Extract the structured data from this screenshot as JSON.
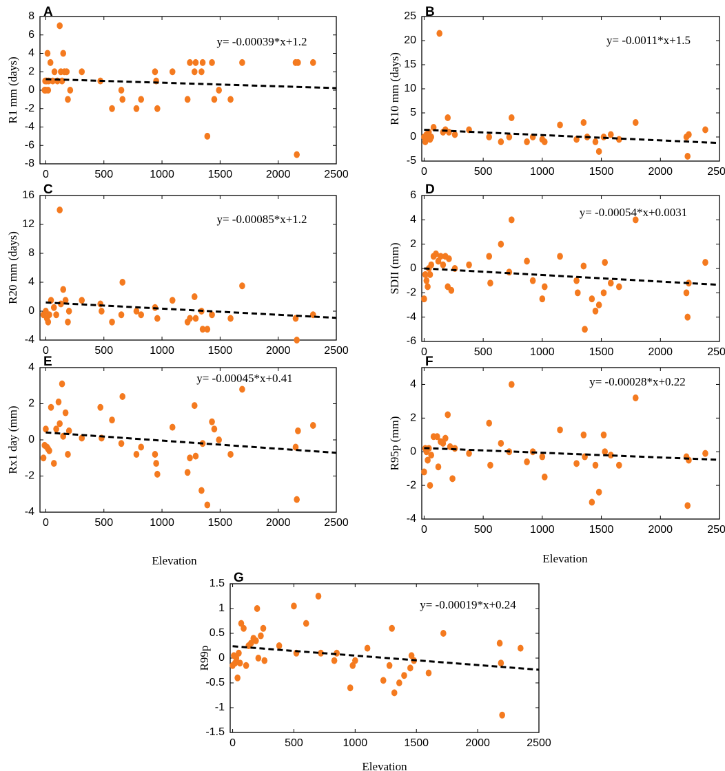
{
  "colors": {
    "point": "#F47A1F",
    "trend": "#000000",
    "axis": "#000000"
  },
  "chart_data": [
    {
      "panel": "A",
      "type": "scatter",
      "ylabel": "R1 mm (days)",
      "xlabel": "",
      "equation": "y= -0.00039*x+1.2",
      "slope": -0.00039,
      "intercept": 1.2,
      "xlim": [
        -50,
        2500
      ],
      "ylim": [
        -8,
        8
      ],
      "xticks": [
        0,
        500,
        1000,
        1500,
        2000,
        2500
      ],
      "yticks": [
        -8,
        -6,
        -4,
        -2,
        0,
        2,
        4,
        6,
        8
      ],
      "points": [
        [
          -10,
          0
        ],
        [
          -5,
          1
        ],
        [
          0,
          0
        ],
        [
          8,
          1
        ],
        [
          15,
          4
        ],
        [
          20,
          0
        ],
        [
          25,
          1
        ],
        [
          40,
          3
        ],
        [
          60,
          1
        ],
        [
          75,
          2
        ],
        [
          100,
          1
        ],
        [
          120,
          7
        ],
        [
          130,
          2
        ],
        [
          140,
          1
        ],
        [
          150,
          4
        ],
        [
          160,
          2
        ],
        [
          180,
          2
        ],
        [
          190,
          -1
        ],
        [
          210,
          0
        ],
        [
          310,
          2
        ],
        [
          470,
          1
        ],
        [
          570,
          -2
        ],
        [
          650,
          0
        ],
        [
          660,
          -1
        ],
        [
          780,
          -2
        ],
        [
          820,
          -1
        ],
        [
          940,
          2
        ],
        [
          950,
          1
        ],
        [
          960,
          -2
        ],
        [
          1090,
          2
        ],
        [
          1220,
          -1
        ],
        [
          1240,
          3
        ],
        [
          1280,
          2
        ],
        [
          1290,
          3
        ],
        [
          1340,
          2
        ],
        [
          1350,
          3
        ],
        [
          1390,
          -5
        ],
        [
          1430,
          3
        ],
        [
          1450,
          -1
        ],
        [
          1490,
          0
        ],
        [
          1590,
          -1
        ],
        [
          1690,
          3
        ],
        [
          2150,
          3
        ],
        [
          2160,
          -7
        ],
        [
          2170,
          3
        ],
        [
          2300,
          3
        ]
      ]
    },
    {
      "panel": "B",
      "type": "scatter",
      "ylabel": "R10 mm (days)",
      "xlabel": "",
      "equation": "y= -0.0011*x+1.5",
      "slope": -0.0011,
      "intercept": 1.5,
      "xlim": [
        -20,
        2500
      ],
      "ylim": [
        -5,
        25
      ],
      "xticks": [
        0,
        500,
        1000,
        1500,
        2000,
        2500
      ],
      "yticks": [
        -5,
        0,
        5,
        10,
        15,
        20,
        25
      ],
      "points": [
        [
          0,
          0
        ],
        [
          10,
          -1
        ],
        [
          20,
          0.5
        ],
        [
          30,
          0
        ],
        [
          40,
          1
        ],
        [
          50,
          -0.5
        ],
        [
          60,
          0
        ],
        [
          80,
          2
        ],
        [
          130,
          21.5
        ],
        [
          160,
          1
        ],
        [
          180,
          1.5
        ],
        [
          200,
          4
        ],
        [
          210,
          1
        ],
        [
          260,
          0.5
        ],
        [
          380,
          1.5
        ],
        [
          550,
          0
        ],
        [
          650,
          -1
        ],
        [
          720,
          0
        ],
        [
          740,
          4
        ],
        [
          870,
          -1
        ],
        [
          920,
          0
        ],
        [
          1000,
          -0.5
        ],
        [
          1020,
          -1
        ],
        [
          1150,
          2.5
        ],
        [
          1290,
          -0.5
        ],
        [
          1350,
          3
        ],
        [
          1380,
          0
        ],
        [
          1450,
          -1
        ],
        [
          1480,
          -3
        ],
        [
          1520,
          0
        ],
        [
          1580,
          0.5
        ],
        [
          1650,
          -0.5
        ],
        [
          1790,
          3
        ],
        [
          2220,
          0
        ],
        [
          2230,
          -4
        ],
        [
          2240,
          0.5
        ],
        [
          2380,
          1.5
        ]
      ]
    },
    {
      "panel": "C",
      "type": "scatter",
      "ylabel": "R20 mm (days)",
      "xlabel": "",
      "equation": "y= -0.00085*x+1.2",
      "slope": -0.00085,
      "intercept": 1.2,
      "xlim": [
        -50,
        2500
      ],
      "ylim": [
        -4,
        16
      ],
      "xticks": [
        0,
        500,
        1000,
        1500,
        2000,
        2500
      ],
      "yticks": [
        -4,
        0,
        4,
        8,
        12,
        16
      ],
      "points": [
        [
          -20,
          -0.5
        ],
        [
          0,
          0
        ],
        [
          10,
          -1
        ],
        [
          20,
          -1.5
        ],
        [
          30,
          -0.5
        ],
        [
          45,
          1.5
        ],
        [
          70,
          0.5
        ],
        [
          90,
          -0.5
        ],
        [
          120,
          14
        ],
        [
          130,
          1
        ],
        [
          150,
          3
        ],
        [
          170,
          1.5
        ],
        [
          190,
          -1.5
        ],
        [
          200,
          0
        ],
        [
          310,
          1.5
        ],
        [
          470,
          1
        ],
        [
          480,
          0
        ],
        [
          570,
          -1.5
        ],
        [
          650,
          -0.5
        ],
        [
          660,
          4
        ],
        [
          780,
          0
        ],
        [
          820,
          -0.5
        ],
        [
          940,
          0.5
        ],
        [
          960,
          -1
        ],
        [
          1090,
          1.5
        ],
        [
          1220,
          -1.5
        ],
        [
          1240,
          -1
        ],
        [
          1280,
          2
        ],
        [
          1290,
          -1
        ],
        [
          1340,
          0
        ],
        [
          1350,
          -2.5
        ],
        [
          1390,
          -2.5
        ],
        [
          1430,
          -0.5
        ],
        [
          1590,
          -1
        ],
        [
          1690,
          3.5
        ],
        [
          2150,
          -1
        ],
        [
          2160,
          -4
        ],
        [
          2300,
          -0.5
        ]
      ]
    },
    {
      "panel": "D",
      "type": "scatter",
      "ylabel": "SDII (mm)",
      "xlabel": "",
      "equation": "y= -0.00054*x+0.0031",
      "slope": -0.00054,
      "intercept": 0.0031,
      "xlim": [
        -20,
        2500
      ],
      "ylim": [
        -6,
        6
      ],
      "xticks": [
        0,
        500,
        1000,
        1500,
        2000,
        2500
      ],
      "yticks": [
        -6,
        -4,
        -2,
        0,
        2,
        4,
        6
      ],
      "points": [
        [
          0,
          -2.5
        ],
        [
          10,
          -0.5
        ],
        [
          20,
          -1
        ],
        [
          30,
          -1.5
        ],
        [
          40,
          0
        ],
        [
          50,
          -0.5
        ],
        [
          60,
          0.3
        ],
        [
          80,
          1
        ],
        [
          100,
          1.2
        ],
        [
          120,
          0.6
        ],
        [
          140,
          1
        ],
        [
          160,
          0.3
        ],
        [
          180,
          1
        ],
        [
          200,
          -1.5
        ],
        [
          210,
          0.8
        ],
        [
          230,
          -1.8
        ],
        [
          260,
          0
        ],
        [
          380,
          0.3
        ],
        [
          550,
          1
        ],
        [
          560,
          -1.2
        ],
        [
          650,
          2
        ],
        [
          720,
          -0.3
        ],
        [
          740,
          4
        ],
        [
          870,
          0.6
        ],
        [
          920,
          -1
        ],
        [
          1000,
          -2.5
        ],
        [
          1020,
          -1.5
        ],
        [
          1150,
          1
        ],
        [
          1290,
          -1
        ],
        [
          1300,
          -2
        ],
        [
          1350,
          0.2
        ],
        [
          1360,
          -5
        ],
        [
          1420,
          -2.5
        ],
        [
          1450,
          -3.5
        ],
        [
          1480,
          -3
        ],
        [
          1520,
          -2
        ],
        [
          1530,
          0.5
        ],
        [
          1580,
          -1.2
        ],
        [
          1650,
          -1.5
        ],
        [
          1790,
          4
        ],
        [
          2220,
          -2
        ],
        [
          2230,
          -4
        ],
        [
          2240,
          -1.2
        ],
        [
          2380,
          0.5
        ]
      ]
    },
    {
      "panel": "E",
      "type": "scatter",
      "ylabel": "Rx1 day (mm)",
      "xlabel": "Elevation",
      "equation": "y= -0.00045*x+0.41",
      "slope": -0.00045,
      "intercept": 0.41,
      "xlim": [
        -50,
        2500
      ],
      "ylim": [
        -4,
        4
      ],
      "xticks": [
        0,
        500,
        1000,
        1500,
        2000,
        2500
      ],
      "yticks": [
        -4,
        -2,
        0,
        2,
        4
      ],
      "points": [
        [
          -20,
          -1
        ],
        [
          -10,
          -0.3
        ],
        [
          0,
          0.6
        ],
        [
          10,
          -0.4
        ],
        [
          20,
          -0.5
        ],
        [
          30,
          -0.6
        ],
        [
          45,
          1.8
        ],
        [
          70,
          -1.3
        ],
        [
          90,
          0.6
        ],
        [
          110,
          2.1
        ],
        [
          120,
          0.9
        ],
        [
          140,
          3.1
        ],
        [
          150,
          0.2
        ],
        [
          170,
          1.5
        ],
        [
          190,
          -0.8
        ],
        [
          200,
          0.5
        ],
        [
          310,
          0.1
        ],
        [
          470,
          1.8
        ],
        [
          480,
          0.1
        ],
        [
          570,
          1.1
        ],
        [
          650,
          -0.2
        ],
        [
          660,
          2.4
        ],
        [
          780,
          -0.8
        ],
        [
          820,
          -0.4
        ],
        [
          940,
          -0.8
        ],
        [
          950,
          -1.3
        ],
        [
          960,
          -1.9
        ],
        [
          1090,
          0.7
        ],
        [
          1220,
          -1.8
        ],
        [
          1240,
          -1
        ],
        [
          1280,
          1.9
        ],
        [
          1290,
          -0.9
        ],
        [
          1340,
          -2.8
        ],
        [
          1350,
          -0.2
        ],
        [
          1390,
          -3.6
        ],
        [
          1430,
          1
        ],
        [
          1450,
          0.6
        ],
        [
          1490,
          0
        ],
        [
          1590,
          -0.8
        ],
        [
          1690,
          2.8
        ],
        [
          2150,
          -0.4
        ],
        [
          2160,
          -3.3
        ],
        [
          2170,
          0.5
        ],
        [
          2300,
          0.8
        ]
      ]
    },
    {
      "panel": "F",
      "type": "scatter",
      "ylabel": "R95p (mm)",
      "xlabel": "Elevation",
      "equation": "y= -0.00028*x+0.22",
      "slope": -0.00028,
      "intercept": 0.22,
      "xlim": [
        -20,
        2500
      ],
      "ylim": [
        -4,
        5
      ],
      "xticks": [
        0,
        500,
        1000,
        1500,
        2000,
        2500
      ],
      "yticks": [
        -4,
        -2,
        0,
        2,
        4
      ],
      "points": [
        [
          0,
          -1.2
        ],
        [
          10,
          0.2
        ],
        [
          20,
          0
        ],
        [
          30,
          -0.5
        ],
        [
          40,
          0.2
        ],
        [
          50,
          -2
        ],
        [
          60,
          -0.2
        ],
        [
          80,
          0.9
        ],
        [
          110,
          0.9
        ],
        [
          120,
          -0.9
        ],
        [
          140,
          0.6
        ],
        [
          160,
          0.5
        ],
        [
          180,
          0.8
        ],
        [
          200,
          2.2
        ],
        [
          220,
          0.3
        ],
        [
          240,
          -1.6
        ],
        [
          260,
          0.2
        ],
        [
          380,
          -0.1
        ],
        [
          550,
          1.7
        ],
        [
          560,
          -0.8
        ],
        [
          650,
          0.5
        ],
        [
          720,
          0
        ],
        [
          740,
          4
        ],
        [
          870,
          -0.6
        ],
        [
          920,
          0
        ],
        [
          1000,
          -0.3
        ],
        [
          1020,
          -1.5
        ],
        [
          1150,
          1.3
        ],
        [
          1290,
          -0.7
        ],
        [
          1350,
          1
        ],
        [
          1360,
          -0.3
        ],
        [
          1420,
          -3
        ],
        [
          1450,
          -0.8
        ],
        [
          1480,
          -2.4
        ],
        [
          1520,
          1
        ],
        [
          1530,
          0
        ],
        [
          1580,
          -0.2
        ],
        [
          1650,
          -0.8
        ],
        [
          1790,
          3.2
        ],
        [
          2220,
          -0.3
        ],
        [
          2230,
          -3.2
        ],
        [
          2240,
          -0.5
        ],
        [
          2380,
          -0.1
        ]
      ]
    },
    {
      "panel": "G",
      "type": "scatter",
      "ylabel": "R99p",
      "xlabel": "Elevation",
      "equation": "y= -0.00019*x+0.24",
      "slope": -0.00019,
      "intercept": 0.24,
      "xlim": [
        -20,
        2500
      ],
      "ylim": [
        -1.5,
        1.5
      ],
      "xticks": [
        0,
        500,
        1000,
        1500,
        2000,
        2500
      ],
      "yticks": [
        -1.5,
        -1,
        -0.5,
        0,
        0.5,
        1,
        1.5
      ],
      "points": [
        [
          0,
          -0.15
        ],
        [
          10,
          0.05
        ],
        [
          20,
          -0.1
        ],
        [
          30,
          0
        ],
        [
          40,
          -0.4
        ],
        [
          50,
          0.1
        ],
        [
          60,
          -0.1
        ],
        [
          70,
          0.7
        ],
        [
          90,
          0.6
        ],
        [
          110,
          -0.15
        ],
        [
          130,
          0.25
        ],
        [
          150,
          0.3
        ],
        [
          170,
          0.4
        ],
        [
          190,
          0.35
        ],
        [
          200,
          1
        ],
        [
          210,
          0
        ],
        [
          230,
          0.45
        ],
        [
          250,
          0.6
        ],
        [
          260,
          -0.05
        ],
        [
          380,
          0.25
        ],
        [
          500,
          1.05
        ],
        [
          520,
          0.1
        ],
        [
          600,
          0.7
        ],
        [
          700,
          1.25
        ],
        [
          720,
          0.1
        ],
        [
          830,
          -0.05
        ],
        [
          850,
          0.1
        ],
        [
          960,
          -0.6
        ],
        [
          980,
          -0.15
        ],
        [
          1000,
          -0.05
        ],
        [
          1100,
          0.2
        ],
        [
          1230,
          -0.45
        ],
        [
          1280,
          -0.15
        ],
        [
          1300,
          0.6
        ],
        [
          1320,
          -0.7
        ],
        [
          1360,
          -0.5
        ],
        [
          1400,
          -0.35
        ],
        [
          1450,
          -0.2
        ],
        [
          1460,
          0.05
        ],
        [
          1480,
          -0.05
        ],
        [
          1600,
          -0.3
        ],
        [
          1720,
          0.5
        ],
        [
          2180,
          0.3
        ],
        [
          2190,
          -0.1
        ],
        [
          2200,
          -1.15
        ],
        [
          2350,
          0.2
        ]
      ]
    }
  ]
}
